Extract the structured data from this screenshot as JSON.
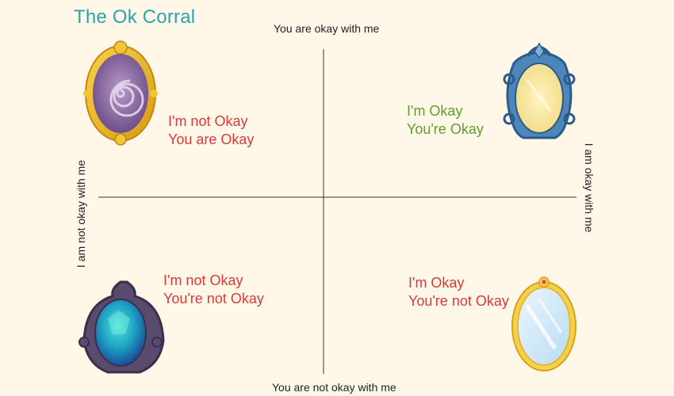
{
  "diagram": {
    "title": "The Ok Corral",
    "axes": {
      "top": "You are okay with me",
      "bottom": "You are not okay with me",
      "left": "I am not okay with me",
      "right": "I am okay with me"
    },
    "quadrants": {
      "top_left": {
        "line1": "I'm not Okay",
        "line2": "You are Okay",
        "color": "#d63a3a",
        "mirror": "purple-swirl-mirror-icon"
      },
      "top_right": {
        "line1": "I'm Okay",
        "line2": "You're Okay",
        "color": "#5f9d2c",
        "mirror": "blue-ornate-mirror-icon"
      },
      "bottom_left": {
        "line1": "I'm not Okay",
        "line2": "You're not Okay",
        "color": "#d63a3a",
        "mirror": "dark-teal-mirror-icon"
      },
      "bottom_right": {
        "line1": "I'm Okay",
        "line2": "You're not Okay",
        "color": "#d63a3a",
        "mirror": "light-blue-mirror-icon"
      }
    },
    "colors": {
      "background": "#fff8e8",
      "title": "#2aa3ad",
      "axis": "#333333"
    }
  }
}
